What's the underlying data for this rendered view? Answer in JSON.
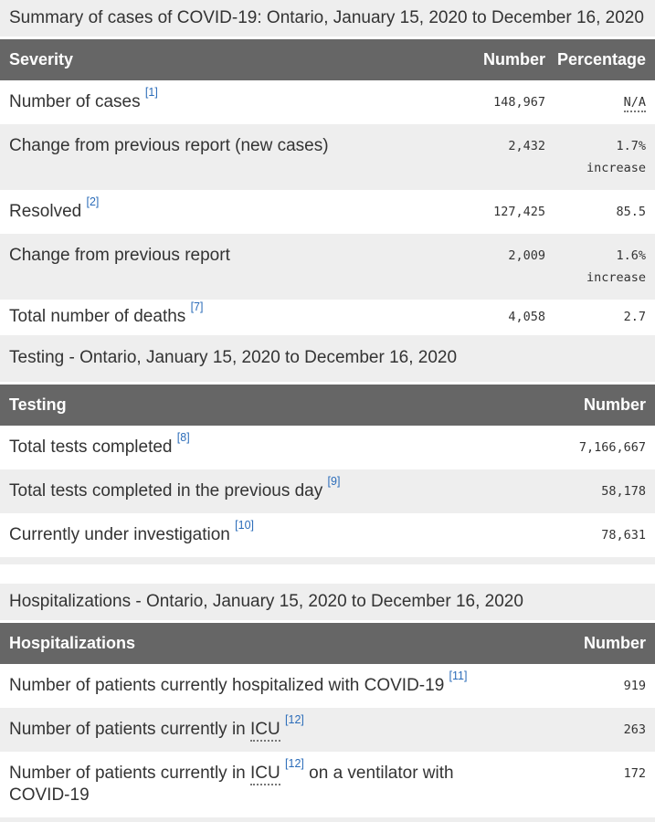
{
  "colors": {
    "header_bg": "#666666",
    "stripe": "#eeeeee",
    "text": "#333333",
    "link": "#2b6cb9",
    "header_text": "#ffffff"
  },
  "tables": [
    {
      "caption": "Summary of cases of COVID-19: Ontario, January 15, 2020 to December 16, 2020",
      "columns": [
        "Severity",
        "Number",
        "Percentage"
      ],
      "rows": [
        {
          "label": [
            {
              "type": "text",
              "text": "Number of cases"
            },
            {
              "type": "footnote",
              "text": "[1]"
            }
          ],
          "number": "148,967",
          "percentage": [
            {
              "type": "abbr",
              "text": "N/A"
            }
          ]
        },
        {
          "label": [
            {
              "type": "text",
              "text": "Change from previous report (new cases)"
            }
          ],
          "number": "2,432",
          "percentage": [
            {
              "type": "text",
              "text": "1.7%"
            },
            {
              "type": "break"
            },
            {
              "type": "text",
              "text": "increase"
            }
          ]
        },
        {
          "label": [
            {
              "type": "text",
              "text": "Resolved"
            },
            {
              "type": "footnote",
              "text": "[2]"
            }
          ],
          "number": "127,425",
          "percentage": [
            {
              "type": "text",
              "text": "85.5"
            }
          ]
        },
        {
          "label": [
            {
              "type": "text",
              "text": "Change from previous report"
            }
          ],
          "number": "2,009",
          "percentage": [
            {
              "type": "text",
              "text": "1.6%"
            },
            {
              "type": "break"
            },
            {
              "type": "text",
              "text": "increase"
            }
          ]
        },
        {
          "label": [
            {
              "type": "text",
              "text": "Total number of deaths"
            },
            {
              "type": "footnote",
              "text": "[7]"
            }
          ],
          "number": "4,058",
          "percentage": [
            {
              "type": "text",
              "text": "2.7"
            }
          ]
        }
      ]
    },
    {
      "caption": "Testing - Ontario, January 15, 2020 to December 16, 2020",
      "columns": [
        "Testing",
        "Number"
      ],
      "rows": [
        {
          "label": [
            {
              "type": "text",
              "text": "Total tests completed"
            },
            {
              "type": "footnote",
              "text": "[8]"
            }
          ],
          "number": "7,166,667"
        },
        {
          "label": [
            {
              "type": "text",
              "text": "Total tests completed in the previous day"
            },
            {
              "type": "footnote",
              "text": "[9]"
            }
          ],
          "number": "58,178"
        },
        {
          "label": [
            {
              "type": "text",
              "text": "Currently under investigation"
            },
            {
              "type": "footnote",
              "text": "[10]"
            }
          ],
          "number": "78,631"
        }
      ]
    },
    {
      "caption": "Hospitalizations - Ontario, January 15, 2020 to December 16, 2020",
      "columns": [
        "Hospitalizations",
        "Number"
      ],
      "rows": [
        {
          "label": [
            {
              "type": "text",
              "text": "Number of patients currently hospitalized with COVID-19"
            },
            {
              "type": "footnote",
              "text": "[11]"
            }
          ],
          "number": "919"
        },
        {
          "label": [
            {
              "type": "text",
              "text": "Number of patients currently in"
            },
            {
              "type": "abbr",
              "text": "ICU"
            },
            {
              "type": "footnote",
              "text": "[12]"
            }
          ],
          "number": "263"
        },
        {
          "label": [
            {
              "type": "text",
              "text": "Number of patients currently in"
            },
            {
              "type": "abbr",
              "text": "ICU"
            },
            {
              "type": "footnote",
              "text": "[12]"
            },
            {
              "type": "text",
              "text": "on a ventilator with COVID-19"
            }
          ],
          "number": "172"
        }
      ]
    }
  ]
}
